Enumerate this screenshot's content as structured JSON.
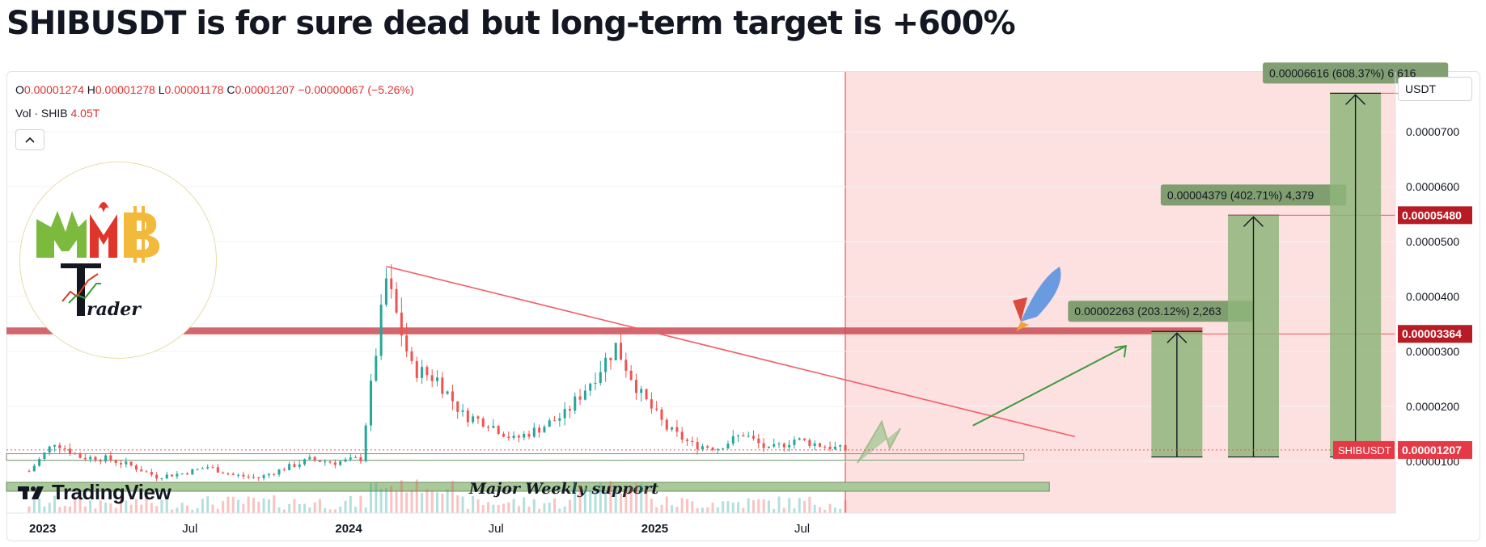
{
  "title": "SHIBUSDT is for sure dead but long-term target is +600%",
  "legend": {
    "ohlc_prefix_o": "O",
    "o": "0.00001274",
    "ohlc_prefix_h": "H",
    "h": "0.00001278",
    "ohlc_prefix_l": "L",
    "l": "0.00001178",
    "ohlc_prefix_c": "C",
    "c": "0.00001207",
    "change": "−0.00000067 (−5.26%)",
    "vol_label": "Vol · SHIB",
    "vol_value": "4.05T"
  },
  "unit_label": "USDT",
  "watermark": "TradingView",
  "support_label": "Major Weekly support",
  "symbol_tag": "SHIBUSDT",
  "logo_text": "MMB Trader",
  "colors": {
    "bull": "#26a69a",
    "bear": "#ef5350",
    "forecast_zone": "#fde0e0",
    "target_box": "#8fb57a",
    "support_band": "#a9c99a",
    "resistance_band": "#c94c56",
    "trend_line": "#f25c66",
    "price_tag": "#e53946",
    "level_tag": "#b71c24"
  },
  "chart_data": {
    "type": "candlestick",
    "y_unit": "USDT",
    "x_ticks": [
      "2023",
      "Jul",
      "2024",
      "Jul",
      "2025",
      "Jul"
    ],
    "y_ticks": [
      1e-05,
      2e-05,
      3e-05,
      4e-05,
      5e-05,
      6e-05,
      7e-05
    ],
    "y_tick_labels": [
      "0.0000100",
      "0.0000200",
      "0.0000300",
      "0.0000400",
      "0.0000500",
      "0.0000600",
      "0.0000700"
    ],
    "last_price": 1.207e-05,
    "last_price_label": "0.00001207",
    "price_path": [
      [
        "2023-01",
        8.2e-06
      ],
      [
        "2023-02",
        1.35e-05
      ],
      [
        "2023-03",
        1.08e-05
      ],
      [
        "2023-04",
        1.05e-05
      ],
      [
        "2023-05",
        9.2e-06
      ],
      [
        "2023-06",
        7.2e-06
      ],
      [
        "2023-07",
        7.8e-06
      ],
      [
        "2023-08",
        9e-06
      ],
      [
        "2023-09",
        7.5e-06
      ],
      [
        "2023-10",
        7e-06
      ],
      [
        "2023-11",
        8.7e-06
      ],
      [
        "2023-12",
        1.03e-05
      ],
      [
        "2024-01",
        9.8e-06
      ],
      [
        "2024-02",
        1.05e-05
      ],
      [
        "2024-03",
        4.3e-05
      ],
      [
        "2024-04",
        2.7e-05
      ],
      [
        "2024-05",
        2.5e-05
      ],
      [
        "2024-06",
        1.85e-05
      ],
      [
        "2024-07",
        1.7e-05
      ],
      [
        "2024-08",
        1.4e-05
      ],
      [
        "2024-09",
        1.6e-05
      ],
      [
        "2024-10",
        1.85e-05
      ],
      [
        "2024-11",
        2.45e-05
      ],
      [
        "2024-12",
        3.1e-05
      ],
      [
        "2025-01",
        2.2e-05
      ],
      [
        "2025-02",
        1.6e-05
      ],
      [
        "2025-03",
        1.3e-05
      ],
      [
        "2025-04",
        1.25e-05
      ],
      [
        "2025-05",
        1.5e-05
      ],
      [
        "2025-06",
        1.2e-05
      ],
      [
        "2025-07",
        1.4e-05
      ],
      [
        "2025-08",
        1.3e-05
      ],
      [
        "2025-09",
        1.207e-05
      ]
    ],
    "trend_line": {
      "from": [
        "2024-03",
        4.55e-05
      ],
      "to": [
        "2026-06",
        1.45e-05
      ]
    },
    "resistance_zone": 3.364e-05,
    "resistance_label": "0.00003364",
    "resistance_zone_end": "2026-11",
    "support_zones": [
      {
        "label": "",
        "value": 1.08e-05,
        "from": "2023-01",
        "to": "2026-04"
      },
      {
        "label": "Major Weekly support",
        "value": 5.3e-06,
        "from": "2023-01",
        "to": "2026-05"
      }
    ],
    "forecast_start": "2025-09",
    "projection_arrow": {
      "from": [
        "2026-02",
        1.65e-05
      ],
      "to": [
        "2026-08",
        3.1e-05
      ]
    },
    "targets": [
      {
        "label": "0.00002263 (203.12%) 2,263",
        "value": 3.364e-05,
        "from": "2026-09",
        "to": "2026-11"
      },
      {
        "label": "0.00004379 (402.71%) 4,379",
        "value": 5.48e-05,
        "level_label": "0.00005480",
        "from": "2026-12",
        "to": "2027-02"
      },
      {
        "label": "0.00006616 (608.37%) 6,616",
        "value": 7.7e-05,
        "from": "2027-04",
        "to": "2027-06"
      }
    ],
    "target_base": 1.08e-05,
    "ylim": [
      5e-07,
      8.15e-05
    ]
  }
}
